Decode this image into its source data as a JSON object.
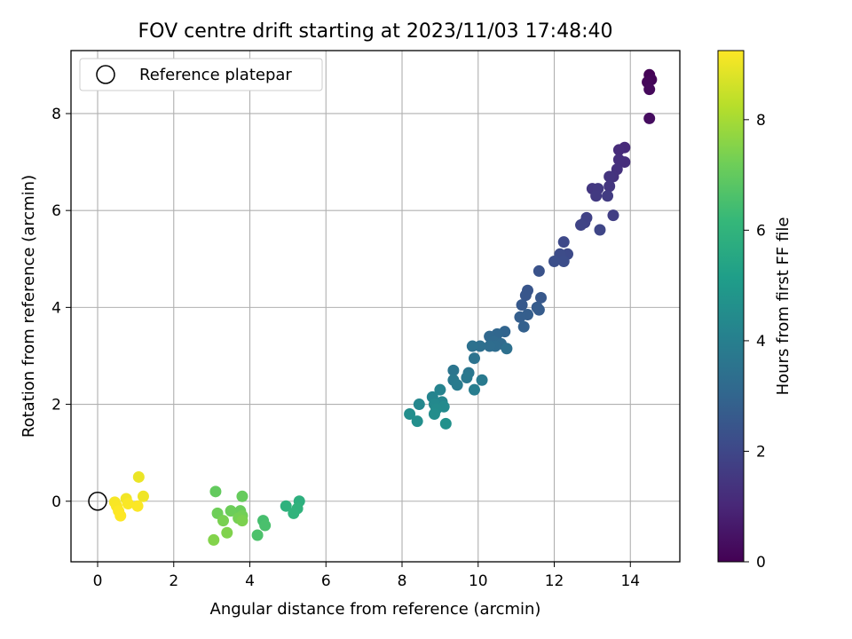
{
  "chart_data": {
    "type": "scatter",
    "title": "FOV centre drift starting at 2023/11/03 17:48:40",
    "xlabel": "Angular distance from reference (arcmin)",
    "ylabel": "Rotation from reference (arcmin)",
    "xlim": [
      -0.7,
      15.3
    ],
    "ylim": [
      -1.25,
      9.3
    ],
    "xticks": [
      0,
      2,
      4,
      6,
      8,
      10,
      12,
      14
    ],
    "yticks": [
      0,
      2,
      4,
      6,
      8
    ],
    "grid": true,
    "legend": {
      "position": "upper-left",
      "entries": [
        "Reference platepar"
      ]
    },
    "reference_point": {
      "label": "Reference platepar",
      "x": 0,
      "y": 0
    },
    "colorbar": {
      "label": "Hours from first FF file",
      "colormap": "viridis",
      "range": [
        0,
        9.25
      ],
      "ticks": [
        0,
        2,
        4,
        6,
        8
      ]
    },
    "colormap_stops": [
      "#440154",
      "#482878",
      "#3e4989",
      "#31688e",
      "#26828e",
      "#1f9e89",
      "#35b779",
      "#6ece58",
      "#b5de2b",
      "#fde725"
    ],
    "series": [
      {
        "columns": [
          "x",
          "y",
          "hours"
        ],
        "points": [
          [
            14.5,
            8.8,
            0.05
          ],
          [
            14.55,
            8.7,
            0.1
          ],
          [
            14.45,
            8.65,
            0.15
          ],
          [
            14.5,
            8.5,
            0.2
          ],
          [
            14.5,
            7.9,
            0.3
          ],
          [
            13.85,
            7.3,
            1.1
          ],
          [
            13.7,
            7.25,
            1.15
          ],
          [
            13.85,
            7.0,
            1.2
          ],
          [
            13.7,
            7.05,
            1.25
          ],
          [
            13.65,
            6.85,
            1.3
          ],
          [
            13.55,
            6.7,
            1.35
          ],
          [
            13.45,
            6.7,
            1.4
          ],
          [
            13.45,
            6.5,
            1.45
          ],
          [
            13.0,
            6.45,
            1.5
          ],
          [
            13.15,
            6.45,
            1.55
          ],
          [
            13.1,
            6.3,
            1.6
          ],
          [
            13.4,
            6.3,
            1.65
          ],
          [
            13.55,
            5.9,
            1.7
          ],
          [
            12.85,
            5.85,
            1.8
          ],
          [
            12.8,
            5.75,
            1.85
          ],
          [
            12.7,
            5.7,
            1.9
          ],
          [
            13.2,
            5.6,
            1.95
          ],
          [
            12.25,
            5.35,
            2.05
          ],
          [
            12.35,
            5.1,
            2.1
          ],
          [
            12.15,
            5.1,
            2.15
          ],
          [
            12.25,
            4.95,
            2.2
          ],
          [
            12.0,
            4.95,
            2.25
          ],
          [
            11.6,
            4.75,
            2.35
          ],
          [
            11.3,
            4.35,
            2.45
          ],
          [
            11.25,
            4.25,
            2.5
          ],
          [
            11.65,
            4.2,
            2.55
          ],
          [
            11.15,
            4.05,
            2.6
          ],
          [
            11.55,
            4.0,
            2.65
          ],
          [
            11.6,
            3.95,
            2.7
          ],
          [
            11.3,
            3.85,
            2.75
          ],
          [
            11.1,
            3.8,
            2.8
          ],
          [
            11.2,
            3.6,
            2.85
          ],
          [
            10.7,
            3.5,
            3.0
          ],
          [
            10.5,
            3.45,
            3.05
          ],
          [
            10.3,
            3.4,
            3.1
          ],
          [
            10.4,
            3.3,
            3.15
          ],
          [
            10.6,
            3.25,
            3.2
          ],
          [
            10.45,
            3.2,
            3.25
          ],
          [
            10.3,
            3.2,
            3.3
          ],
          [
            10.05,
            3.2,
            3.35
          ],
          [
            10.75,
            3.15,
            3.4
          ],
          [
            9.85,
            3.2,
            3.45
          ],
          [
            9.9,
            2.95,
            3.5
          ],
          [
            9.35,
            2.7,
            3.6
          ],
          [
            9.75,
            2.65,
            3.65
          ],
          [
            9.7,
            2.55,
            3.7
          ],
          [
            9.35,
            2.5,
            3.75
          ],
          [
            10.1,
            2.5,
            3.8
          ],
          [
            9.45,
            2.4,
            3.85
          ],
          [
            9.9,
            2.3,
            3.9
          ],
          [
            9.0,
            2.3,
            4.15
          ],
          [
            8.8,
            2.15,
            4.2
          ],
          [
            9.05,
            2.05,
            4.25
          ],
          [
            8.45,
            2.0,
            4.3
          ],
          [
            8.85,
            2.0,
            4.35
          ],
          [
            9.1,
            1.95,
            4.4
          ],
          [
            8.9,
            1.9,
            4.45
          ],
          [
            8.85,
            1.8,
            4.5
          ],
          [
            8.2,
            1.8,
            4.55
          ],
          [
            8.4,
            1.65,
            4.6
          ],
          [
            9.15,
            1.6,
            4.65
          ],
          [
            5.3,
            0.0,
            5.85
          ],
          [
            4.95,
            -0.1,
            5.9
          ],
          [
            5.25,
            -0.15,
            5.95
          ],
          [
            5.15,
            -0.25,
            6.0
          ],
          [
            4.35,
            -0.4,
            6.5
          ],
          [
            4.4,
            -0.5,
            6.55
          ],
          [
            4.2,
            -0.7,
            6.6
          ],
          [
            3.1,
            0.2,
            7.0
          ],
          [
            3.8,
            0.1,
            7.05
          ],
          [
            3.75,
            -0.2,
            7.1
          ],
          [
            3.5,
            -0.2,
            7.15
          ],
          [
            3.15,
            -0.25,
            7.2
          ],
          [
            3.8,
            -0.3,
            7.25
          ],
          [
            3.7,
            -0.35,
            7.3
          ],
          [
            3.3,
            -0.4,
            7.35
          ],
          [
            3.8,
            -0.4,
            7.4
          ],
          [
            3.4,
            -0.65,
            7.45
          ],
          [
            3.05,
            -0.8,
            7.5
          ],
          [
            1.08,
            0.5,
            9.0
          ],
          [
            1.2,
            0.1,
            9.05
          ],
          [
            0.75,
            0.05,
            9.1
          ],
          [
            0.45,
            -0.02,
            9.15
          ],
          [
            0.5,
            -0.1,
            9.18
          ],
          [
            0.8,
            -0.05,
            9.2
          ],
          [
            1.05,
            -0.1,
            9.22
          ],
          [
            0.55,
            -0.2,
            9.24
          ],
          [
            0.6,
            -0.3,
            9.25
          ]
        ]
      }
    ]
  }
}
